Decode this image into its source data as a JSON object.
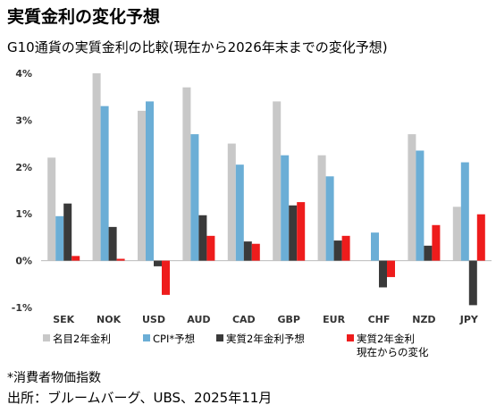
{
  "title": "実質金利の変化予想",
  "subtitle": "G10通貨の実質金利の比較(現在から2026年末までの変化予想)",
  "footnote": "*消費者物価指数",
  "source": "出所：ブルームバーグ、UBS、2025年11月",
  "chart_data": {
    "type": "bar",
    "categories": [
      "SEK",
      "NOK",
      "USD",
      "AUD",
      "CAD",
      "GBP",
      "EUR",
      "CHF",
      "NZD",
      "JPY"
    ],
    "series": [
      {
        "name": "名目2年金利",
        "color": "#c8c8c8",
        "values": [
          2.2,
          4.0,
          3.2,
          3.7,
          2.5,
          3.4,
          2.25,
          0.0,
          2.7,
          1.15
        ]
      },
      {
        "name": "CPI*予想",
        "color": "#6baed6",
        "values": [
          0.95,
          3.3,
          3.4,
          2.7,
          2.05,
          2.25,
          1.8,
          0.6,
          2.35,
          2.1
        ]
      },
      {
        "name": "実質2年金利予想",
        "color": "#3a3a3a",
        "values": [
          1.22,
          0.72,
          -0.12,
          0.97,
          0.41,
          1.18,
          0.43,
          -0.57,
          0.32,
          -0.95
        ]
      },
      {
        "name": "実質2年金利\n現在からの変化",
        "color": "#ee1c1c",
        "values": [
          0.1,
          0.04,
          -0.73,
          0.53,
          0.36,
          1.25,
          0.53,
          -0.35,
          0.76,
          0.99
        ]
      }
    ],
    "yticks": [
      "4%",
      "3%",
      "2%",
      "1%",
      "0%",
      "-1%"
    ],
    "ylim": [
      -1,
      4
    ],
    "grid": false,
    "legend_position": "bottom"
  }
}
